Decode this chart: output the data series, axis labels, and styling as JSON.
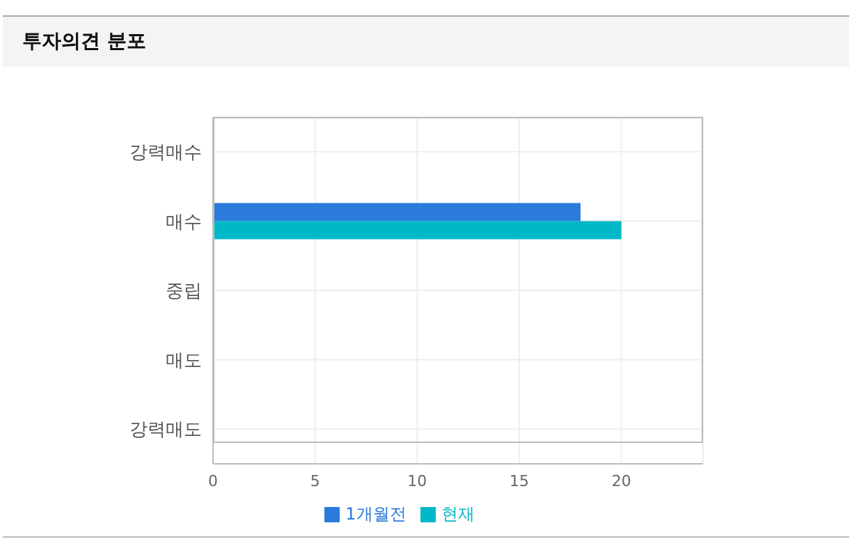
{
  "chart_data": {
    "type": "bar",
    "orientation": "horizontal",
    "title": "투자의견 분포",
    "categories": [
      "강력매수",
      "매수",
      "중립",
      "매도",
      "강력매도"
    ],
    "series": [
      {
        "name": "1개월전",
        "color": "#2b7bdc",
        "values": [
          0,
          18,
          0,
          0,
          0
        ]
      },
      {
        "name": "현재",
        "color": "#00b8c8",
        "values": [
          0,
          20,
          0,
          0,
          0
        ]
      }
    ],
    "xlim": [
      0,
      24
    ],
    "xticks": [
      0,
      5,
      10,
      15,
      20
    ],
    "grid": true,
    "legend": "bottom"
  }
}
